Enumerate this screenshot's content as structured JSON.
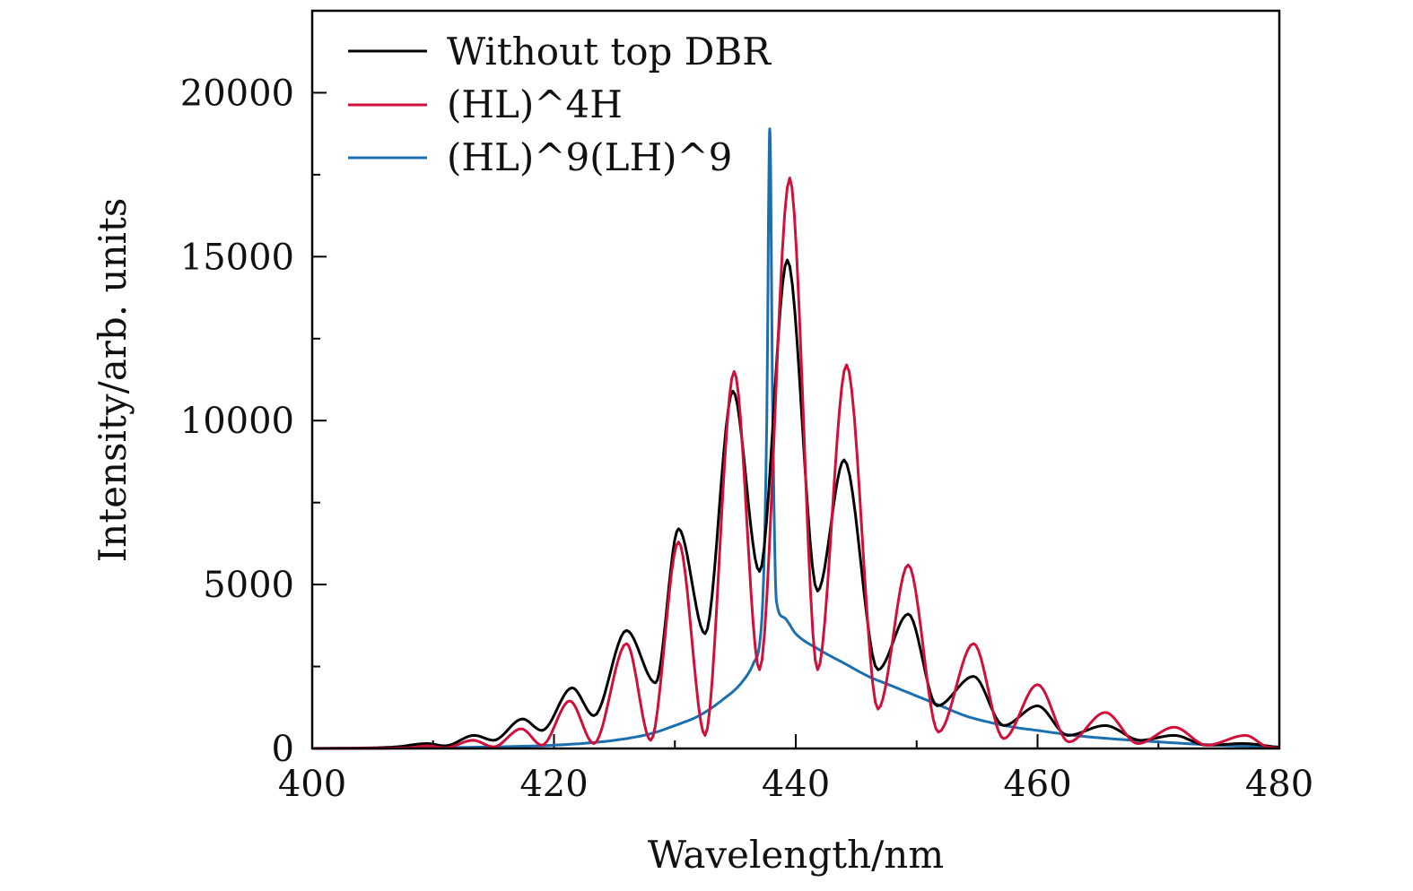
{
  "chart_data": {
    "type": "line",
    "title": "",
    "xlabel": "Wavelength/nm",
    "ylabel": "Intensity/arb. units",
    "xlim": [
      400,
      480
    ],
    "ylim": [
      0,
      22500
    ],
    "xticks": [
      400,
      420,
      440,
      460,
      480
    ],
    "xtick_labels": [
      "400",
      "420",
      "440",
      "460",
      "480"
    ],
    "xminor_step": 10,
    "yticks": [
      0,
      5000,
      10000,
      15000,
      20000
    ],
    "ytick_labels": [
      "0",
      "5000",
      "10000",
      "15000",
      "20000"
    ],
    "yminor_step": 2500,
    "grid": false,
    "legend_position": "top-left",
    "series": [
      {
        "name": "Without top DBR",
        "color": "#000000",
        "x": [
          400,
          405,
          407,
          409.5,
          411,
          413.4,
          415,
          417.4,
          419,
          421.5,
          423.3,
          426,
          428.4,
          430.3,
          432.5,
          434.8,
          437,
          439.3,
          441.8,
          444,
          446.8,
          449.3,
          451.7,
          454.7,
          457.2,
          460,
          462.5,
          465.6,
          468.5,
          471.3,
          474,
          477,
          480
        ],
        "y": [
          0,
          20,
          50,
          150,
          80,
          400,
          250,
          900,
          550,
          1850,
          1000,
          3600,
          2000,
          6700,
          3500,
          10900,
          5400,
          14900,
          4800,
          8800,
          2400,
          4100,
          1300,
          2200,
          700,
          1300,
          400,
          700,
          250,
          400,
          100,
          150,
          30
        ]
      },
      {
        "name": "(HL)^4H",
        "color": "#d0103a",
        "x": [
          400,
          408,
          409.5,
          411,
          413.3,
          415,
          417.3,
          419,
          421.3,
          423.3,
          426,
          428,
          430.3,
          432.5,
          434.9,
          437,
          439.5,
          441.8,
          444.2,
          446.8,
          449.3,
          451.8,
          454.7,
          457.2,
          460,
          462.6,
          465.6,
          468.3,
          471.3,
          474,
          477.2,
          479,
          480
        ],
        "y": [
          0,
          20,
          80,
          20,
          250,
          50,
          600,
          100,
          1450,
          150,
          3200,
          250,
          6300,
          400,
          11500,
          2400,
          17400,
          2400,
          11700,
          1200,
          5600,
          500,
          3200,
          300,
          1950,
          200,
          1100,
          150,
          650,
          100,
          400,
          50,
          20
        ]
      },
      {
        "name": "(HL)^9(LH)^9",
        "color": "#1a6fb0",
        "x": [
          400,
          410,
          415,
          420,
          425,
          428,
          430,
          432,
          434,
          435.5,
          436.5,
          437.2,
          437.6,
          437.85,
          438.1,
          438.4,
          439,
          440,
          442,
          444,
          446,
          448,
          450,
          452,
          454,
          456,
          458,
          460,
          463,
          466,
          470,
          475,
          480
        ],
        "y": [
          0,
          20,
          50,
          100,
          250,
          450,
          700,
          1000,
          1500,
          2000,
          2600,
          4000,
          10000,
          18900,
          10000,
          4500,
          4000,
          3500,
          3000,
          2600,
          2200,
          1900,
          1600,
          1300,
          1000,
          800,
          650,
          550,
          400,
          300,
          200,
          100,
          50
        ]
      }
    ]
  }
}
